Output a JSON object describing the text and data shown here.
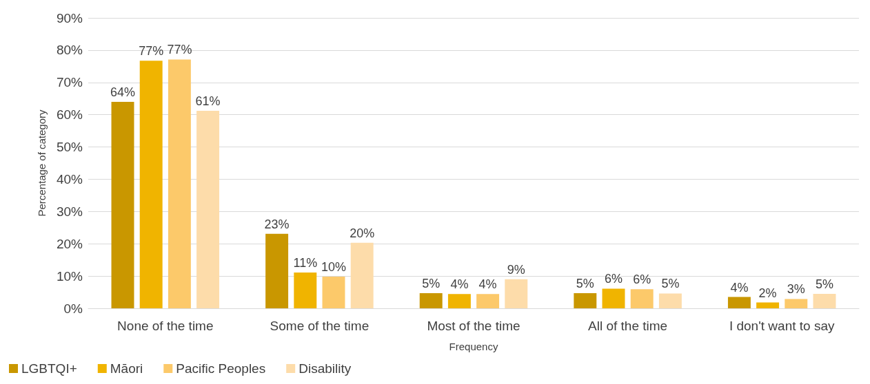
{
  "chart_data": {
    "type": "bar",
    "xlabel": "Frequency",
    "ylabel": "Percentage of category",
    "categories": [
      "None of the time",
      "Some of the time",
      "Most of the time",
      "All of the time",
      "I don't want to say"
    ],
    "series": [
      {
        "name": "LGBTQI+",
        "color": "#c99700",
        "values": [
          64,
          23.1,
          4.7,
          4.7,
          3.5
        ],
        "value_labels": [
          "64%",
          "23%",
          "5%",
          "5%",
          "4%"
        ]
      },
      {
        "name": "Māori",
        "color": "#f0b400",
        "values": [
          76.7,
          11.1,
          4.4,
          6.1,
          1.8
        ],
        "value_labels": [
          "77%",
          "11%",
          "4%",
          "6%",
          "2%"
        ]
      },
      {
        "name": "Pacific Peoples",
        "color": "#fcc96a",
        "values": [
          77.1,
          9.8,
          4.4,
          5.9,
          2.9
        ],
        "value_labels": [
          "77%",
          "10%",
          "4%",
          "6%",
          "3%"
        ]
      },
      {
        "name": "Disability",
        "color": "#fddcaa",
        "values": [
          61.2,
          20.3,
          9,
          4.6,
          4.5
        ],
        "value_labels": [
          "61%",
          "20%",
          "9%",
          "5%",
          "5%"
        ]
      }
    ],
    "ylim": [
      0,
      90
    ],
    "yticks": [
      {
        "value": 0,
        "label": "0%"
      },
      {
        "value": 10,
        "label": "10%"
      },
      {
        "value": 20,
        "label": "20%"
      },
      {
        "value": 30,
        "label": "30%"
      },
      {
        "value": 40,
        "label": "40%"
      },
      {
        "value": 50,
        "label": "50%"
      },
      {
        "value": 60,
        "label": "60%"
      },
      {
        "value": 70,
        "label": "70%"
      },
      {
        "value": 80,
        "label": "80%"
      },
      {
        "value": 90,
        "label": "90%"
      }
    ],
    "grid": "y",
    "legend": "bottom left"
  }
}
